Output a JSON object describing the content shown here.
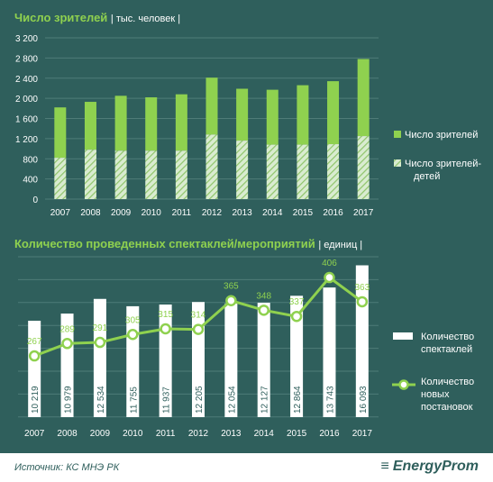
{
  "chart_data": [
    {
      "type": "bar",
      "title": "Число зрителей",
      "unit": "| тыс. человек |",
      "categories": [
        "2007",
        "2008",
        "2009",
        "2010",
        "2011",
        "2012",
        "2013",
        "2014",
        "2015",
        "2016",
        "2017"
      ],
      "series": [
        {
          "name": "Число зрителей",
          "values": [
            1820,
            1930,
            2050,
            2020,
            2080,
            2410,
            2190,
            2170,
            2260,
            2340,
            2780
          ],
          "color": "#8fd14f"
        },
        {
          "name": "Число зрителей-детей",
          "values": [
            820,
            980,
            960,
            960,
            960,
            1280,
            1160,
            1080,
            1080,
            1090,
            1250
          ],
          "pattern": "hatched"
        }
      ],
      "yticks": [
        "0",
        "400",
        "800",
        "1 200",
        "1 600",
        "2 000",
        "2 400",
        "2 800",
        "3 200"
      ],
      "ylim": [
        0,
        3200
      ],
      "grid": true,
      "legend": "right"
    },
    {
      "type": "bar+line",
      "title": "Количество проведенных спектаклей/мероприятий",
      "unit": "| единиц |",
      "categories": [
        "2007",
        "2008",
        "2009",
        "2010",
        "2011",
        "2012",
        "2013",
        "2014",
        "2015",
        "2016",
        "2017"
      ],
      "bars": {
        "name": "Количество спектаклей",
        "values": [
          10219,
          10979,
          12534,
          11755,
          11937,
          12205,
          12054,
          12127,
          12864,
          13743,
          16093
        ],
        "labels": [
          "10 219",
          "10 979",
          "12 534",
          "11 755",
          "11 937",
          "12 205",
          "12 054",
          "12 127",
          "12 864",
          "13 743",
          "16 093"
        ],
        "color": "#ffffff"
      },
      "line": {
        "name": "Количество новых постановок",
        "values": [
          267,
          289,
          291,
          305,
          315,
          314,
          365,
          348,
          337,
          406,
          363
        ],
        "labels": [
          "267",
          "289",
          "291",
          "305",
          "315",
          "314",
          "365",
          "348",
          "337",
          "406",
          "363"
        ],
        "color": "#8fd14f"
      },
      "legend": "right"
    }
  ],
  "legend1": [
    "Число зрителей",
    "Число зрителей-детей"
  ],
  "legend2": [
    "Количество спектаклей",
    "Количество новых постановок"
  ],
  "footer": {
    "source": "Источник: КС МНЭ РК",
    "brand": "EnergyProm"
  }
}
